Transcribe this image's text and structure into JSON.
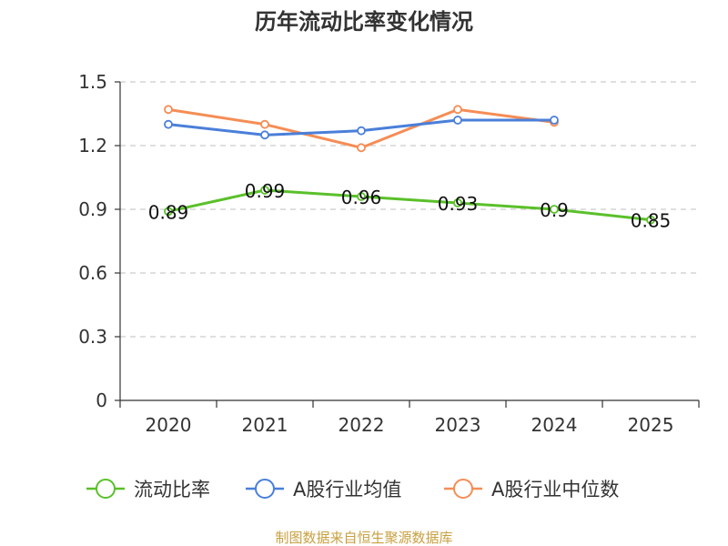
{
  "chart_data": {
    "type": "line",
    "title": "历年流动比率变化情况",
    "categories": [
      "2020",
      "2021",
      "2022",
      "2023",
      "2024",
      "2025"
    ],
    "ylim": [
      0,
      1.5
    ],
    "yticks": [
      "0",
      "0.3",
      "0.6",
      "0.9",
      "1.2",
      "1.5"
    ],
    "ytick_values": [
      0,
      0.3,
      0.6,
      0.9,
      1.2,
      1.5
    ],
    "grid": true,
    "legend_position": "bottom",
    "series": [
      {
        "name": "流动比率",
        "color": "#5ac02a",
        "values": [
          0.89,
          0.99,
          0.96,
          0.93,
          0.9,
          0.85
        ],
        "labels": [
          "0.89",
          "0.99",
          "0.96",
          "0.93",
          "0.9",
          "0.85"
        ]
      },
      {
        "name": "A股行业均值",
        "color": "#4a7fd9",
        "values": [
          1.3,
          1.25,
          1.27,
          1.32,
          1.32,
          null
        ]
      },
      {
        "name": "A股行业中位数",
        "color": "#f58d55",
        "values": [
          1.37,
          1.3,
          1.19,
          1.37,
          1.31,
          null
        ]
      }
    ]
  },
  "source": "制图数据来自恒生聚源数据库"
}
